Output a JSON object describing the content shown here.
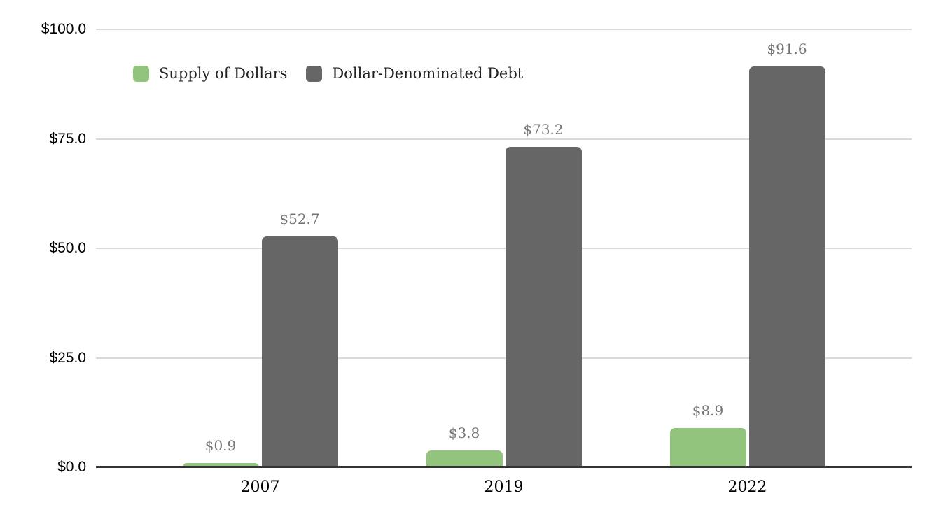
{
  "chart_data": {
    "type": "bar",
    "categories": [
      "2007",
      "2019",
      "2022"
    ],
    "series": [
      {
        "name": "Supply of Dollars",
        "color": "#93c47d",
        "values": [
          0.9,
          3.8,
          8.9
        ],
        "value_labels": [
          "$0.9",
          "$3.8",
          "$8.9"
        ]
      },
      {
        "name": "Dollar-Denominated Debt",
        "color": "#666666",
        "values": [
          52.7,
          73.2,
          91.6
        ],
        "value_labels": [
          "$52.7",
          "$73.2",
          "$91.6"
        ]
      }
    ],
    "y_axis": {
      "min": 0,
      "max": 100,
      "ticks": [
        0,
        25,
        50,
        75,
        100
      ],
      "tick_labels": [
        "$0.0",
        "$25.0",
        "$50.0",
        "$75.0",
        "$100.0"
      ]
    },
    "grid": true,
    "legend_position": "top-left-inside"
  },
  "colors": {
    "background": "#ffffff",
    "gridline": "#d9d9d9",
    "axis_line": "#333333",
    "value_label_text": "#757575",
    "y_tick_text": "#000000",
    "category_text": "#000000",
    "legend_text": "#212121",
    "series_green": "#93c47d",
    "series_gray": "#666666"
  }
}
